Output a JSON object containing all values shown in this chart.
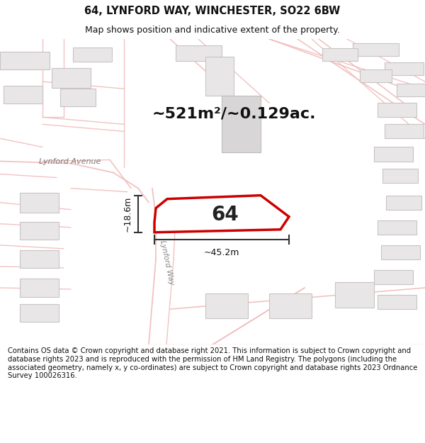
{
  "title": "64, LYNFORD WAY, WINCHESTER, SO22 6BW",
  "subtitle": "Map shows position and indicative extent of the property.",
  "footer": "Contains OS data © Crown copyright and database right 2021. This information is subject to Crown copyright and database rights 2023 and is reproduced with the permission of HM Land Registry. The polygons (including the associated geometry, namely x, y co-ordinates) are subject to Crown copyright and database rights 2023 Ordnance Survey 100026316.",
  "area_label": "~521m²/~0.129ac.",
  "number_label": "64",
  "dim_width": "~45.2m",
  "dim_height": "~18.6m",
  "street_label_1": "Lynford Avenue",
  "street_label_2": "Lynford Way",
  "map_bg": "#f9f7f7",
  "road_color": "#f0b8b8",
  "building_fill": "#e8e6e6",
  "building_edge": "#c8c4c4",
  "plot_outline_color": "#cc0000",
  "dim_line_color": "#333333",
  "title_fontsize": 10.5,
  "subtitle_fontsize": 9,
  "footer_fontsize": 7.2,
  "area_fontsize": 16,
  "number_fontsize": 20,
  "dim_fontsize": 9
}
